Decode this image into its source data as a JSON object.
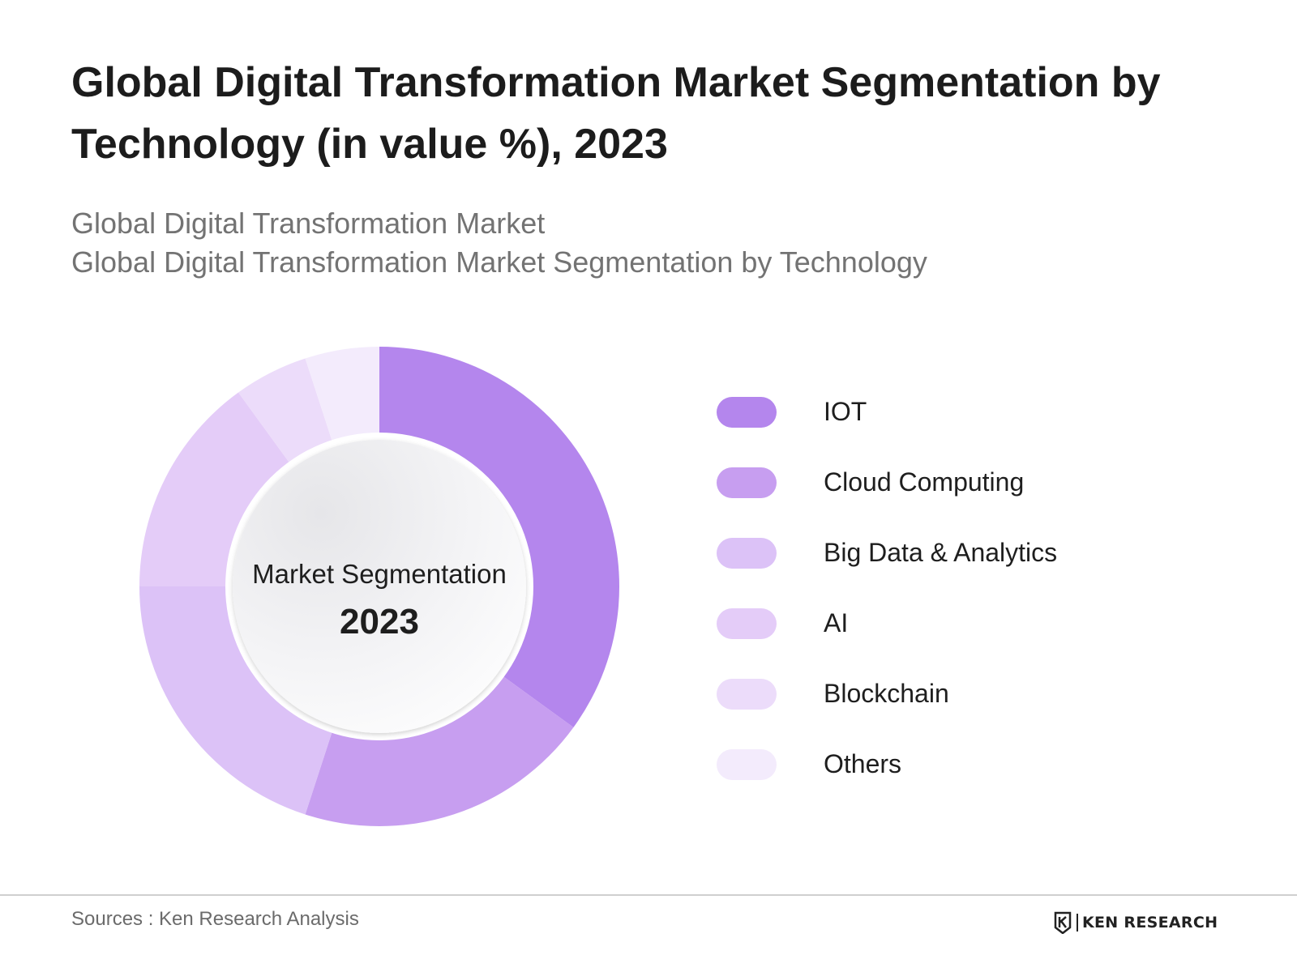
{
  "title": "Global Digital Transformation Market Segmentation by Technology (in value %), 2023",
  "subtitle_lines": [
    "Global Digital Transformation Market",
    "Global Digital Transformation Market Segmentation by Technology"
  ],
  "center": {
    "label": "Market Segmentation",
    "year": "2023"
  },
  "chart_data": {
    "type": "pie",
    "variant": "donut",
    "title": "Global Digital Transformation Market Segmentation by Technology (in value %), 2023",
    "legend_position": "right",
    "categories": [
      "IOT",
      "Cloud Computing",
      "Big Data & Analytics",
      "AI",
      "Blockchain",
      "Others"
    ],
    "values": [
      35,
      20,
      20,
      15,
      5,
      5
    ],
    "colors": [
      "#b486ed",
      "#c79ef0",
      "#dcc2f7",
      "#e4ccf8",
      "#ecdcfa",
      "#f3ebfc"
    ]
  },
  "footer": {
    "source": "Sources : Ken Research Analysis",
    "logo_text": "KEN RESEARCH"
  }
}
